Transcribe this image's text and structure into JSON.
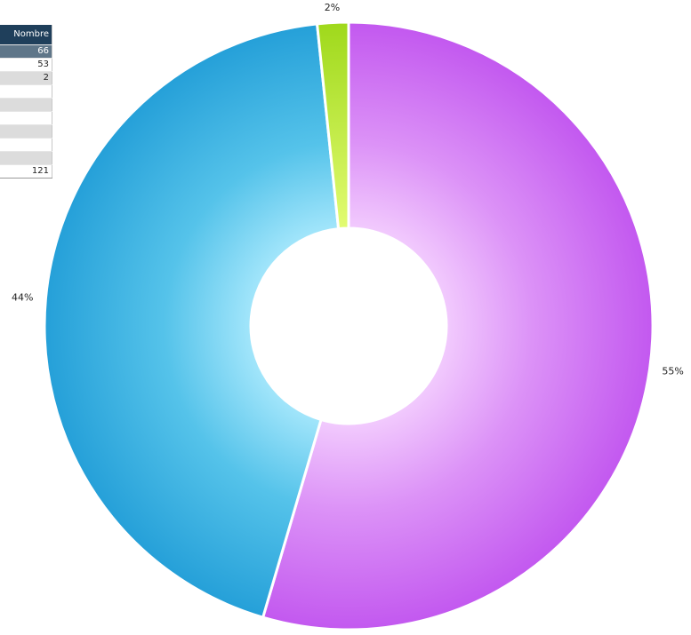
{
  "table": {
    "header": "Nombre",
    "rows": [
      "66",
      "53",
      "2",
      "",
      "",
      "",
      "",
      "",
      ""
    ],
    "total": "121"
  },
  "chart_data": {
    "type": "pie",
    "variant": "donut",
    "categories": [
      "",
      "",
      ""
    ],
    "values": [
      66,
      53,
      2
    ],
    "labels": [
      "55%",
      "44%",
      "2%"
    ],
    "colors": [
      "#c95cf2",
      "#2ea6dc",
      "#a9e21d"
    ],
    "title": "",
    "legend": "none"
  }
}
